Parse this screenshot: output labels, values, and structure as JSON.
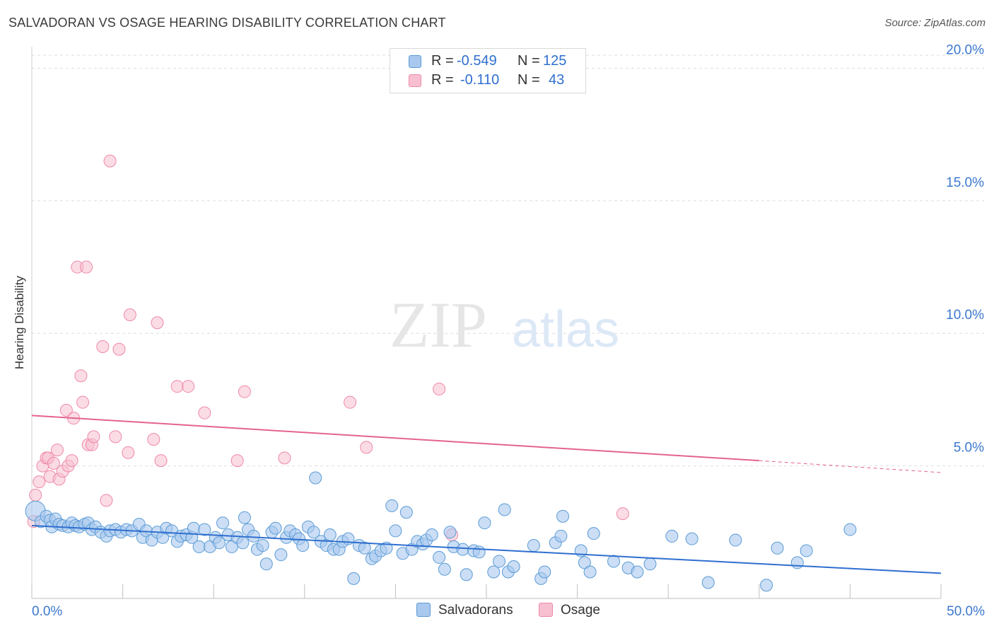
{
  "header": {
    "title": "SALVADORAN VS OSAGE HEARING DISABILITY CORRELATION CHART",
    "source": "Source: ZipAtlas.com"
  },
  "legend": {
    "r_label": "R =",
    "n_label": "N =",
    "salvadorans": {
      "r": "-0.549",
      "n": "125"
    },
    "osage": {
      "r": "-0.110",
      "n": "43"
    }
  },
  "watermark": {
    "zip": "ZIP",
    "atlas": "atlas"
  },
  "colors": {
    "blue": "#5b9bd5",
    "blue_fill": "#a9c8ee",
    "blue_line": "#2f6fcf",
    "pink": "#ef89a8",
    "pink_fill": "#f7bfd0",
    "pink_line": "#e4638f",
    "axis_label": "#3b78cf"
  },
  "chart_data": {
    "type": "scatter",
    "title": "SALVADORAN VS OSAGE HEARING DISABILITY CORRELATION CHART",
    "xlabel": "",
    "ylabel": "Hearing Disability",
    "xlim": [
      0,
      50
    ],
    "ylim": [
      0,
      20.6
    ],
    "x_tick_labels": [
      "0.0%",
      "50.0%"
    ],
    "y_ticks": [
      5,
      10,
      15,
      20
    ],
    "y_tick_labels": [
      "5.0%",
      "10.0%",
      "15.0%",
      "20.0%"
    ],
    "legend_position": "bottom-center",
    "series": [
      {
        "name": "Salvadorans",
        "color": "#5b9bd5",
        "trend": {
          "x": [
            0,
            50
          ],
          "y": [
            2.75,
            0.95
          ]
        },
        "points": [
          [
            0.2,
            3.3
          ],
          [
            0.5,
            2.9
          ],
          [
            0.8,
            3.1
          ],
          [
            1.0,
            2.95
          ],
          [
            1.1,
            2.7
          ],
          [
            1.3,
            3.0
          ],
          [
            1.5,
            2.8
          ],
          [
            1.7,
            2.75
          ],
          [
            2.0,
            2.7
          ],
          [
            2.2,
            2.85
          ],
          [
            2.4,
            2.75
          ],
          [
            2.6,
            2.7
          ],
          [
            2.9,
            2.8
          ],
          [
            3.1,
            2.85
          ],
          [
            3.3,
            2.6
          ],
          [
            3.5,
            2.7
          ],
          [
            3.8,
            2.5
          ],
          [
            4.1,
            2.35
          ],
          [
            4.3,
            2.55
          ],
          [
            4.6,
            2.6
          ],
          [
            4.9,
            2.5
          ],
          [
            5.2,
            2.6
          ],
          [
            5.5,
            2.55
          ],
          [
            5.9,
            2.8
          ],
          [
            6.1,
            2.3
          ],
          [
            6.3,
            2.55
          ],
          [
            6.6,
            2.2
          ],
          [
            6.9,
            2.5
          ],
          [
            7.2,
            2.3
          ],
          [
            7.4,
            2.65
          ],
          [
            7.7,
            2.55
          ],
          [
            8.0,
            2.15
          ],
          [
            8.2,
            2.35
          ],
          [
            8.5,
            2.4
          ],
          [
            8.8,
            2.3
          ],
          [
            8.9,
            2.65
          ],
          [
            9.2,
            1.95
          ],
          [
            9.5,
            2.6
          ],
          [
            9.8,
            1.95
          ],
          [
            10.1,
            2.3
          ],
          [
            10.3,
            2.1
          ],
          [
            10.5,
            2.85
          ],
          [
            10.8,
            2.4
          ],
          [
            11.0,
            1.95
          ],
          [
            11.3,
            2.3
          ],
          [
            11.6,
            2.1
          ],
          [
            11.7,
            3.05
          ],
          [
            11.9,
            2.6
          ],
          [
            12.2,
            2.35
          ],
          [
            12.4,
            1.85
          ],
          [
            12.7,
            2.0
          ],
          [
            12.9,
            1.3
          ],
          [
            13.2,
            2.5
          ],
          [
            13.4,
            2.65
          ],
          [
            13.7,
            1.65
          ],
          [
            14.0,
            2.3
          ],
          [
            14.2,
            2.55
          ],
          [
            14.5,
            2.4
          ],
          [
            14.7,
            2.25
          ],
          [
            14.9,
            2.0
          ],
          [
            15.2,
            2.7
          ],
          [
            15.5,
            2.5
          ],
          [
            15.6,
            4.55
          ],
          [
            15.9,
            2.15
          ],
          [
            16.2,
            2.0
          ],
          [
            16.4,
            2.4
          ],
          [
            16.6,
            1.85
          ],
          [
            16.9,
            1.85
          ],
          [
            17.1,
            2.15
          ],
          [
            17.4,
            2.25
          ],
          [
            17.7,
            0.75
          ],
          [
            18.0,
            2.0
          ],
          [
            18.3,
            1.9
          ],
          [
            18.7,
            1.5
          ],
          [
            18.9,
            1.6
          ],
          [
            19.2,
            1.8
          ],
          [
            19.5,
            1.9
          ],
          [
            19.8,
            3.5
          ],
          [
            20.0,
            2.55
          ],
          [
            20.4,
            1.7
          ],
          [
            20.6,
            3.25
          ],
          [
            20.9,
            1.85
          ],
          [
            21.2,
            2.15
          ],
          [
            21.5,
            2.05
          ],
          [
            21.7,
            2.2
          ],
          [
            22.0,
            2.4
          ],
          [
            22.4,
            1.55
          ],
          [
            22.7,
            1.1
          ],
          [
            23.0,
            2.5
          ],
          [
            23.2,
            1.95
          ],
          [
            23.7,
            1.85
          ],
          [
            23.9,
            0.9
          ],
          [
            24.3,
            1.8
          ],
          [
            24.6,
            1.75
          ],
          [
            24.9,
            2.85
          ],
          [
            25.4,
            1.0
          ],
          [
            25.7,
            1.4
          ],
          [
            26.0,
            3.35
          ],
          [
            26.2,
            1.0
          ],
          [
            26.5,
            1.2
          ],
          [
            27.6,
            2.0
          ],
          [
            28.0,
            0.75
          ],
          [
            28.2,
            1.0
          ],
          [
            28.8,
            2.1
          ],
          [
            29.1,
            2.35
          ],
          [
            29.2,
            3.1
          ],
          [
            30.2,
            1.8
          ],
          [
            30.4,
            1.35
          ],
          [
            30.7,
            1.0
          ],
          [
            30.9,
            2.45
          ],
          [
            32.0,
            1.4
          ],
          [
            32.8,
            1.15
          ],
          [
            33.3,
            1.0
          ],
          [
            34.0,
            1.3
          ],
          [
            35.2,
            2.35
          ],
          [
            36.3,
            2.25
          ],
          [
            37.2,
            0.6
          ],
          [
            38.7,
            2.2
          ],
          [
            40.4,
            0.5
          ],
          [
            41.0,
            1.9
          ],
          [
            42.1,
            1.35
          ],
          [
            42.6,
            1.8
          ],
          [
            45.0,
            2.6
          ]
        ]
      },
      {
        "name": "Osage",
        "color": "#ef89a8",
        "trend": {
          "x": [
            0,
            40
          ],
          "y": [
            6.9,
            5.2
          ]
        },
        "trend_dashed": {
          "x": [
            40,
            50
          ],
          "y": [
            5.2,
            4.75
          ]
        },
        "points": [
          [
            0.1,
            2.9
          ],
          [
            0.2,
            3.9
          ],
          [
            0.4,
            4.4
          ],
          [
            0.6,
            5.0
          ],
          [
            0.8,
            5.3
          ],
          [
            0.9,
            5.3
          ],
          [
            1.0,
            4.6
          ],
          [
            1.2,
            5.1
          ],
          [
            1.4,
            5.6
          ],
          [
            1.5,
            4.5
          ],
          [
            1.7,
            4.8
          ],
          [
            1.9,
            7.1
          ],
          [
            2.0,
            5.0
          ],
          [
            2.2,
            5.2
          ],
          [
            2.3,
            6.8
          ],
          [
            2.5,
            12.5
          ],
          [
            2.7,
            8.4
          ],
          [
            2.8,
            7.4
          ],
          [
            3.0,
            12.5
          ],
          [
            3.1,
            5.8
          ],
          [
            3.3,
            5.8
          ],
          [
            3.4,
            6.1
          ],
          [
            3.9,
            9.5
          ],
          [
            4.1,
            3.7
          ],
          [
            4.3,
            16.5
          ],
          [
            4.6,
            6.1
          ],
          [
            4.8,
            9.4
          ],
          [
            5.3,
            5.5
          ],
          [
            5.4,
            10.7
          ],
          [
            6.7,
            6.0
          ],
          [
            6.9,
            10.4
          ],
          [
            7.1,
            5.2
          ],
          [
            8.0,
            8.0
          ],
          [
            8.6,
            8.0
          ],
          [
            9.5,
            7.0
          ],
          [
            11.3,
            5.2
          ],
          [
            11.7,
            7.8
          ],
          [
            13.9,
            5.3
          ],
          [
            17.5,
            7.4
          ],
          [
            18.4,
            5.7
          ],
          [
            22.4,
            7.9
          ],
          [
            23.1,
            2.4
          ],
          [
            32.5,
            3.2
          ]
        ]
      }
    ]
  }
}
